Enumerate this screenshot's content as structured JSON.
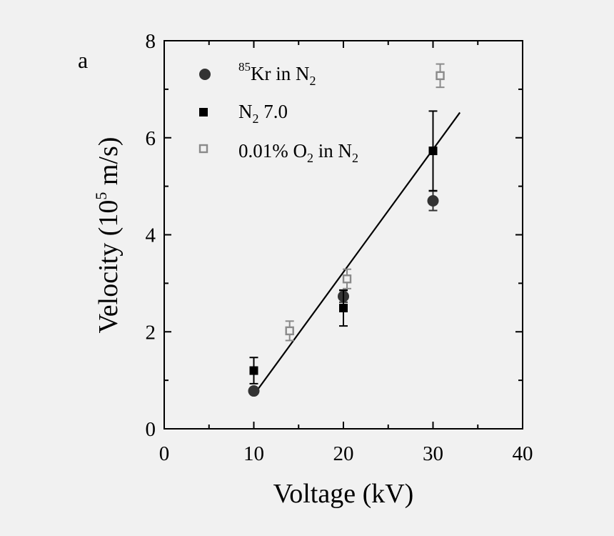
{
  "panel_label": "a",
  "chart_data": {
    "type": "scatter",
    "xlabel": "Voltage (kV)",
    "ylabel": {
      "prefix": "Velocity (10",
      "exponent": "5",
      "suffix": " m/s)"
    },
    "xlim": [
      0,
      40
    ],
    "ylim": [
      0,
      8
    ],
    "xticks": [
      "0",
      "10",
      "20",
      "30",
      "40"
    ],
    "yticks": [
      "0",
      "2",
      "4",
      "6",
      "8"
    ],
    "series": [
      {
        "key": "kr85",
        "legend": {
          "sup": "85",
          "main": "Kr in N",
          "sub": "2"
        },
        "marker": "circle",
        "color": "#333333",
        "x": [
          10,
          20,
          30
        ],
        "y": [
          0.78,
          2.73,
          4.7
        ],
        "err": [
          0.03,
          0.12,
          0.2
        ]
      },
      {
        "key": "n2_70",
        "legend": {
          "a": "N",
          "asub": "2",
          "b": " 7.0"
        },
        "marker": "square",
        "color": "#000000",
        "x": [
          10,
          20,
          30
        ],
        "y": [
          1.2,
          2.49,
          5.73
        ],
        "err": [
          0.27,
          0.37,
          0.82
        ]
      },
      {
        "key": "o2_n2",
        "legend": {
          "a": "0.01% O",
          "asub": "2",
          "b": " in N",
          "bsub": "2"
        },
        "marker": "open-square",
        "color": "#8a8a8a",
        "x": [
          14,
          20.4,
          30.8
        ],
        "y": [
          2.02,
          3.09,
          7.28
        ],
        "err": [
          0.2,
          0.2,
          0.24
        ]
      }
    ],
    "fit_line": {
      "x": [
        10.2,
        33
      ],
      "y": [
        0.75,
        6.52
      ],
      "color": "#000000"
    }
  }
}
